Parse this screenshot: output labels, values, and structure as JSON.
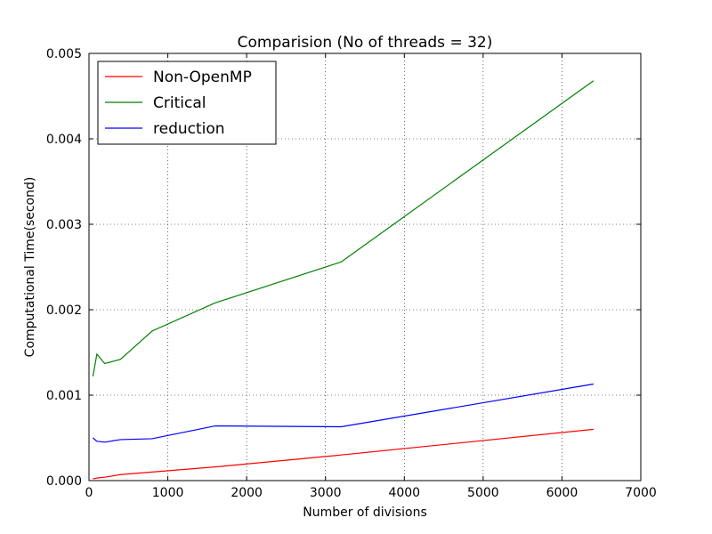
{
  "chart_data": {
    "type": "line",
    "title": "Comparision (No of threads = 32)",
    "xlabel": "Number of divisions",
    "ylabel": "Computational Time(second)",
    "xlim": [
      0,
      7000
    ],
    "ylim": [
      0,
      0.005
    ],
    "xticks": [
      0,
      1000,
      2000,
      3000,
      4000,
      5000,
      6000,
      7000
    ],
    "xtick_labels": [
      "0",
      "1000",
      "2000",
      "3000",
      "4000",
      "5000",
      "6000",
      "7000"
    ],
    "yticks": [
      0,
      0.001,
      0.002,
      0.003,
      0.004,
      0.005
    ],
    "ytick_labels": [
      "0.000",
      "0.001",
      "0.002",
      "0.003",
      "0.004",
      "0.005"
    ],
    "grid": true,
    "legend_position": "top-left",
    "series": [
      {
        "name": "Non-OpenMP",
        "color": "#ff0000",
        "x": [
          50,
          100,
          200,
          400,
          800,
          1600,
          3200,
          6400
        ],
        "y": [
          2e-05,
          3e-05,
          4e-05,
          7e-05,
          0.0001,
          0.00016,
          0.0003,
          0.0006
        ]
      },
      {
        "name": "Critical",
        "color": "#008000",
        "x": [
          50,
          100,
          200,
          400,
          800,
          1600,
          3200,
          6400
        ],
        "y": [
          0.00122,
          0.00148,
          0.00137,
          0.00142,
          0.00175,
          0.00208,
          0.00256,
          0.00468
        ]
      },
      {
        "name": "reduction",
        "color": "#0000ff",
        "x": [
          50,
          100,
          200,
          400,
          800,
          1600,
          3200,
          6400
        ],
        "y": [
          0.0005,
          0.00046,
          0.00045,
          0.00048,
          0.00049,
          0.00064,
          0.00063,
          0.00113
        ]
      }
    ]
  }
}
